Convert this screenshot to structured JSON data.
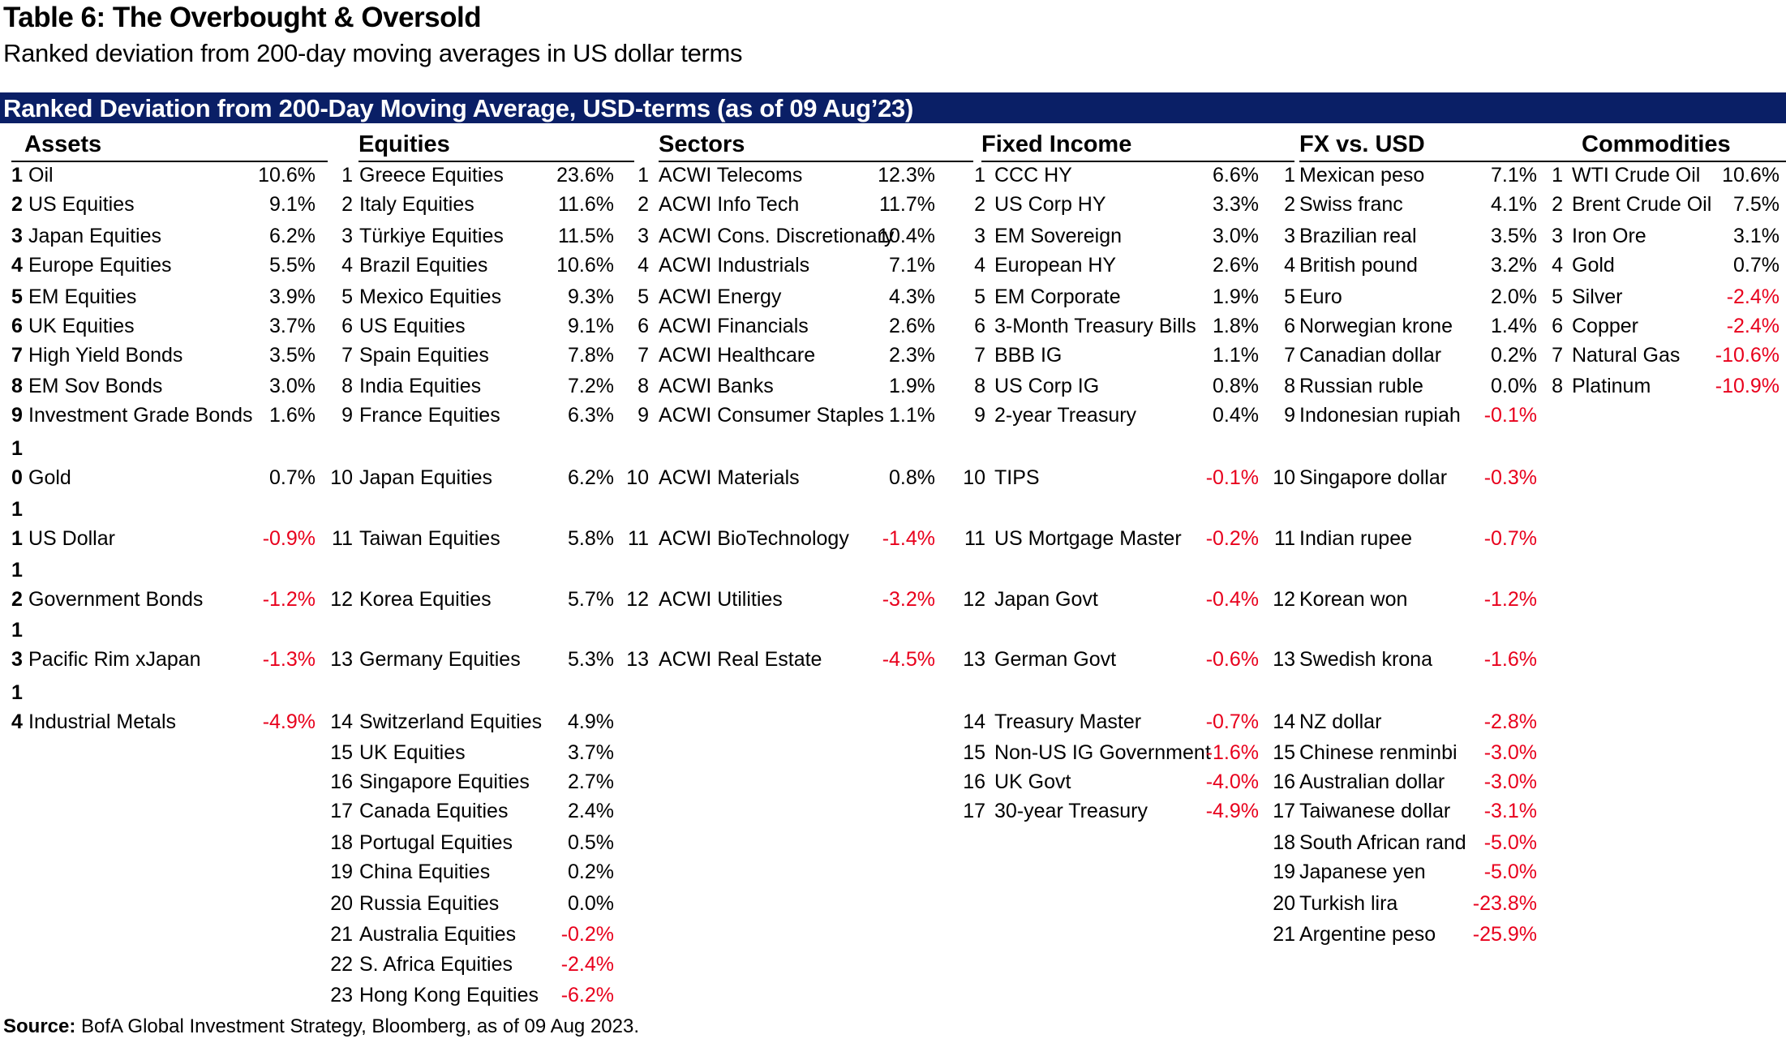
{
  "title": "Table 6: The Overbought & Oversold",
  "subtitle": "Ranked deviation from 200-day moving averages in US dollar terms",
  "banner": "Ranked Deviation from 200-Day Moving Average, USD-terms (as of 09 Aug’23)",
  "source_label": "Source:",
  "source_text": " BofA Global Investment Strategy, Bloomberg, as of 09 Aug 2023.",
  "colors": {
    "banner_bg": "#0a1f66",
    "negative": "#e8001c"
  },
  "groups": [
    {
      "key": "assets",
      "header": "Assets",
      "rows": [
        {
          "rank": "1",
          "name": "Oil",
          "value": "10.6%"
        },
        {
          "rank": "2",
          "name": "US Equities",
          "value": "9.1%"
        },
        {
          "rank": "3",
          "name": "Japan Equities",
          "value": "6.2%"
        },
        {
          "rank": "4",
          "name": "Europe Equities",
          "value": "5.5%"
        },
        {
          "rank": "5",
          "name": "EM Equities",
          "value": "3.9%"
        },
        {
          "rank": "6",
          "name": "UK Equities",
          "value": "3.7%"
        },
        {
          "rank": "7",
          "name": "High Yield Bonds",
          "value": "3.5%"
        },
        {
          "rank": "8",
          "name": "EM Sov Bonds",
          "value": "3.0%"
        },
        {
          "rank": "9",
          "name": "Investment Grade Bonds",
          "value": "1.6%"
        },
        {
          "rank": "10",
          "name": "Gold",
          "value": "0.7%"
        },
        {
          "rank": "11",
          "name": "US Dollar",
          "value": "-0.9%"
        },
        {
          "rank": "12",
          "name": "Government Bonds",
          "value": "-1.2%"
        },
        {
          "rank": "13",
          "name": "Pacific Rim xJapan",
          "value": "-1.3%"
        },
        {
          "rank": "14",
          "name": "Industrial Metals",
          "value": "-4.9%"
        }
      ]
    },
    {
      "key": "equities",
      "header": "Equities",
      "rows": [
        {
          "rank": "1",
          "name": "Greece Equities",
          "value": "23.6%"
        },
        {
          "rank": "2",
          "name": "Italy Equities",
          "value": "11.6%"
        },
        {
          "rank": "3",
          "name": "Türkiye Equities",
          "value": "11.5%"
        },
        {
          "rank": "4",
          "name": "Brazil Equities",
          "value": "10.6%"
        },
        {
          "rank": "5",
          "name": "Mexico Equities",
          "value": "9.3%"
        },
        {
          "rank": "6",
          "name": "US Equities",
          "value": "9.1%"
        },
        {
          "rank": "7",
          "name": "Spain Equities",
          "value": "7.8%"
        },
        {
          "rank": "8",
          "name": "India Equities",
          "value": "7.2%"
        },
        {
          "rank": "9",
          "name": "France Equities",
          "value": "6.3%"
        },
        {
          "rank": "10",
          "name": "Japan Equities",
          "value": "6.2%"
        },
        {
          "rank": "11",
          "name": "Taiwan Equities",
          "value": "5.8%"
        },
        {
          "rank": "12",
          "name": "Korea Equities",
          "value": "5.7%"
        },
        {
          "rank": "13",
          "name": "Germany Equities",
          "value": "5.3%"
        },
        {
          "rank": "14",
          "name": "Switzerland Equities",
          "value": "4.9%"
        },
        {
          "rank": "15",
          "name": "UK Equities",
          "value": "3.7%"
        },
        {
          "rank": "16",
          "name": "Singapore Equities",
          "value": "2.7%"
        },
        {
          "rank": "17",
          "name": "Canada Equities",
          "value": "2.4%"
        },
        {
          "rank": "18",
          "name": "Portugal Equities",
          "value": "0.5%"
        },
        {
          "rank": "19",
          "name": "China Equities",
          "value": "0.2%"
        },
        {
          "rank": "20",
          "name": "Russia Equities",
          "value": "0.0%"
        },
        {
          "rank": "21",
          "name": "Australia Equities",
          "value": "-0.2%"
        },
        {
          "rank": "22",
          "name": "S. Africa Equities",
          "value": "-2.4%"
        },
        {
          "rank": "23",
          "name": "Hong Kong Equities",
          "value": "-6.2%"
        }
      ]
    },
    {
      "key": "sectors",
      "header": "Sectors",
      "rows": [
        {
          "rank": "1",
          "name": "ACWI Telecoms",
          "value": "12.3%"
        },
        {
          "rank": "2",
          "name": "ACWI Info Tech",
          "value": "11.7%"
        },
        {
          "rank": "3",
          "name": "ACWI Cons. Discretionary",
          "value": "10.4%"
        },
        {
          "rank": "4",
          "name": "ACWI Industrials",
          "value": "7.1%"
        },
        {
          "rank": "5",
          "name": "ACWI Energy",
          "value": "4.3%"
        },
        {
          "rank": "6",
          "name": "ACWI Financials",
          "value": "2.6%"
        },
        {
          "rank": "7",
          "name": "ACWI Healthcare",
          "value": "2.3%"
        },
        {
          "rank": "8",
          "name": "ACWI Banks",
          "value": "1.9%"
        },
        {
          "rank": "9",
          "name": "ACWI Consumer Staples",
          "value": "1.1%"
        },
        {
          "rank": "10",
          "name": "ACWI Materials",
          "value": "0.8%"
        },
        {
          "rank": "11",
          "name": "ACWI BioTechnology",
          "value": "-1.4%"
        },
        {
          "rank": "12",
          "name": "ACWI Utilities",
          "value": "-3.2%"
        },
        {
          "rank": "13",
          "name": "ACWI Real Estate",
          "value": "-4.5%"
        }
      ]
    },
    {
      "key": "fixed_income",
      "header": "Fixed Income",
      "rows": [
        {
          "rank": "1",
          "name": "CCC HY",
          "value": "6.6%"
        },
        {
          "rank": "2",
          "name": "US Corp HY",
          "value": "3.3%"
        },
        {
          "rank": "3",
          "name": "EM Sovereign",
          "value": "3.0%"
        },
        {
          "rank": "4",
          "name": "European HY",
          "value": "2.6%"
        },
        {
          "rank": "5",
          "name": "EM Corporate",
          "value": "1.9%"
        },
        {
          "rank": "6",
          "name": "3-Month Treasury Bills",
          "value": "1.8%"
        },
        {
          "rank": "7",
          "name": "BBB IG",
          "value": "1.1%"
        },
        {
          "rank": "8",
          "name": "US Corp IG",
          "value": "0.8%"
        },
        {
          "rank": "9",
          "name": "2-year Treasury",
          "value": "0.4%"
        },
        {
          "rank": "10",
          "name": "TIPS",
          "value": "-0.1%"
        },
        {
          "rank": "11",
          "name": "US Mortgage Master",
          "value": "-0.2%"
        },
        {
          "rank": "12",
          "name": "Japan Govt",
          "value": "-0.4%"
        },
        {
          "rank": "13",
          "name": "German Govt",
          "value": "-0.6%"
        },
        {
          "rank": "14",
          "name": "Treasury Master",
          "value": "-0.7%"
        },
        {
          "rank": "15",
          "name": "Non-US IG Government",
          "value": "-1.6%"
        },
        {
          "rank": "16",
          "name": "UK Govt",
          "value": "-4.0%"
        },
        {
          "rank": "17",
          "name": "30-year Treasury",
          "value": "-4.9%"
        }
      ]
    },
    {
      "key": "fx",
      "header": "FX vs. USD",
      "rows": [
        {
          "rank": "1",
          "name": "Mexican peso",
          "value": "7.1%"
        },
        {
          "rank": "2",
          "name": "Swiss franc",
          "value": "4.1%"
        },
        {
          "rank": "3",
          "name": "Brazilian real",
          "value": "3.5%"
        },
        {
          "rank": "4",
          "name": "British pound",
          "value": "3.2%"
        },
        {
          "rank": "5",
          "name": "Euro",
          "value": "2.0%"
        },
        {
          "rank": "6",
          "name": "Norwegian krone",
          "value": "1.4%"
        },
        {
          "rank": "7",
          "name": "Canadian dollar",
          "value": "0.2%"
        },
        {
          "rank": "8",
          "name": "Russian ruble",
          "value": "0.0%"
        },
        {
          "rank": "9",
          "name": "Indonesian rupiah",
          "value": "-0.1%"
        },
        {
          "rank": "10",
          "name": "Singapore dollar",
          "value": "-0.3%"
        },
        {
          "rank": "11",
          "name": "Indian rupee",
          "value": "-0.7%"
        },
        {
          "rank": "12",
          "name": "Korean won",
          "value": "-1.2%"
        },
        {
          "rank": "13",
          "name": "Swedish krona",
          "value": "-1.6%"
        },
        {
          "rank": "14",
          "name": "NZ dollar",
          "value": "-2.8%"
        },
        {
          "rank": "15",
          "name": "Chinese renminbi",
          "value": "-3.0%"
        },
        {
          "rank": "16",
          "name": "Australian dollar",
          "value": "-3.0%"
        },
        {
          "rank": "17",
          "name": "Taiwanese dollar",
          "value": "-3.1%"
        },
        {
          "rank": "18",
          "name": "South African rand",
          "value": "-5.0%"
        },
        {
          "rank": "19",
          "name": "Japanese yen",
          "value": "-5.0%"
        },
        {
          "rank": "20",
          "name": "Turkish lira",
          "value": "-23.8%"
        },
        {
          "rank": "21",
          "name": "Argentine peso",
          "value": "-25.9%"
        }
      ]
    },
    {
      "key": "commodities",
      "header": "Commodities",
      "rows": [
        {
          "rank": "1",
          "name": "WTI Crude Oil",
          "value": "10.6%"
        },
        {
          "rank": "2",
          "name": "Brent Crude Oil",
          "value": "7.5%"
        },
        {
          "rank": "3",
          "name": "Iron Ore",
          "value": "3.1%"
        },
        {
          "rank": "4",
          "name": "Gold",
          "value": "0.7%"
        },
        {
          "rank": "5",
          "name": "Silver",
          "value": "-2.4%"
        },
        {
          "rank": "6",
          "name": "Copper",
          "value": "-2.4%"
        },
        {
          "rank": "7",
          "name": "Natural Gas",
          "value": "-10.6%"
        },
        {
          "rank": "8",
          "name": "Platinum",
          "value": "-10.9%"
        }
      ]
    }
  ]
}
